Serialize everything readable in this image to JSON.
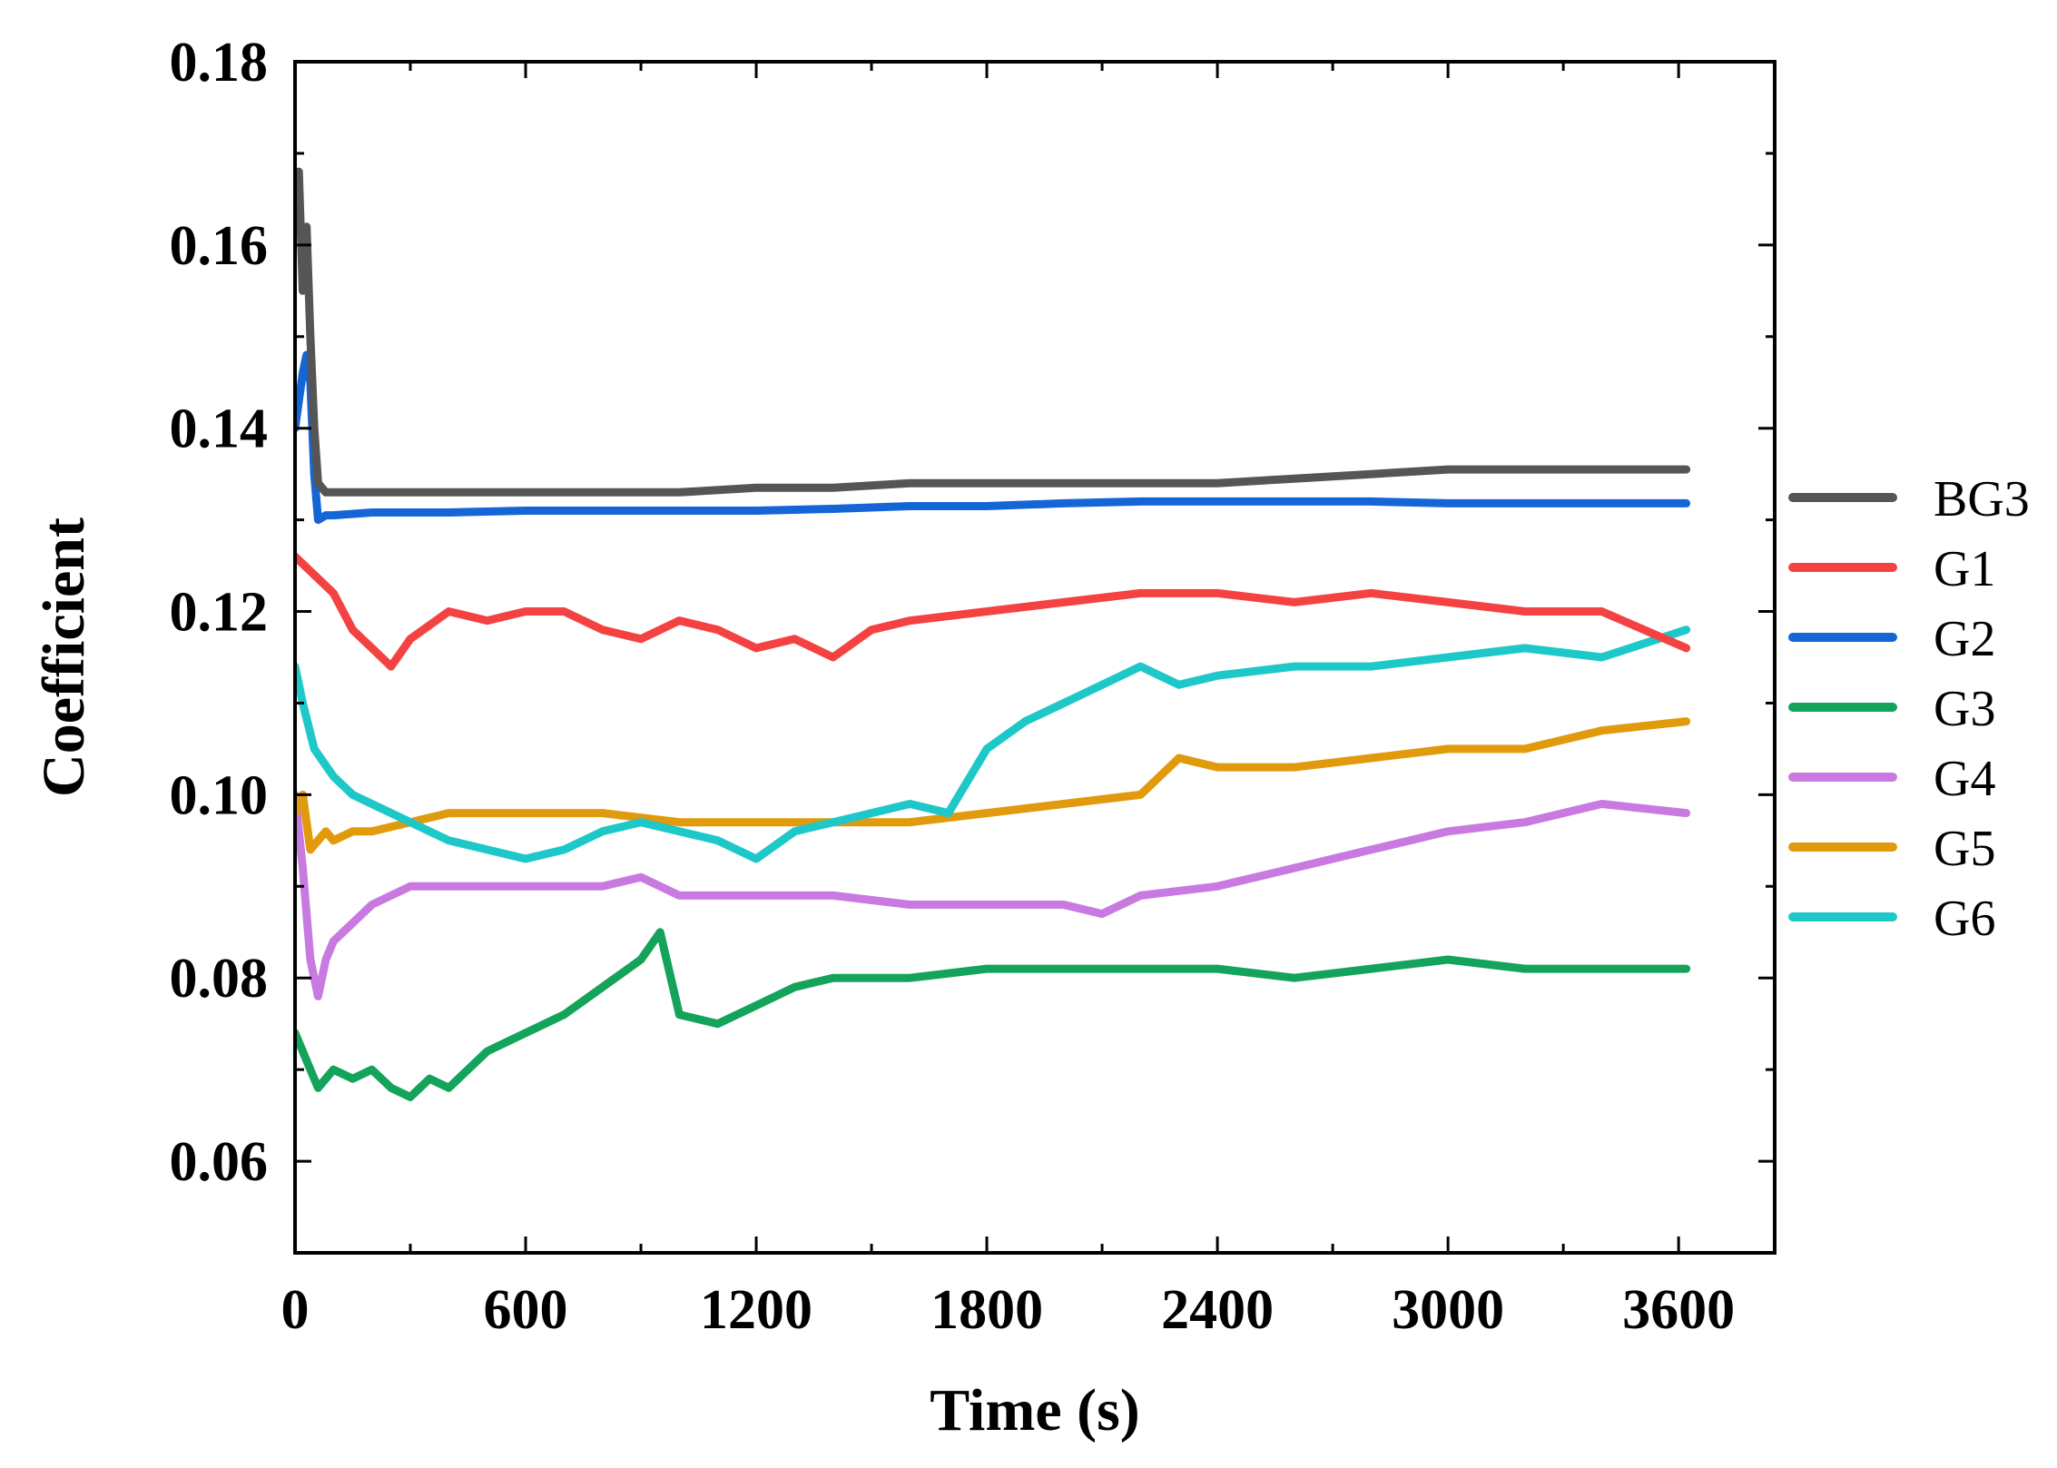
{
  "chart_data": {
    "type": "line",
    "title": "",
    "xlabel": "Time (s)",
    "ylabel": "Coefficient",
    "xlim": [
      0,
      3850
    ],
    "ylim": [
      0.05,
      0.18
    ],
    "xticks": [
      0,
      600,
      1200,
      1800,
      2400,
      3000,
      3600
    ],
    "xtick_labels": [
      "0",
      "600",
      "1200",
      "1800",
      "2400",
      "3000",
      "3600"
    ],
    "yticks": [
      0.06,
      0.08,
      0.1,
      0.12,
      0.14,
      0.16,
      0.18
    ],
    "ytick_labels": [
      "0.06",
      "0.08",
      "0.10",
      "0.12",
      "0.14",
      "0.16",
      "0.18"
    ],
    "grid": false,
    "legend_position": "right",
    "series": [
      {
        "name": "BG3",
        "color": "#555555",
        "x": [
          0,
          10,
          20,
          30,
          40,
          50,
          60,
          80,
          100,
          200,
          400,
          600,
          800,
          1000,
          1200,
          1400,
          1600,
          1800,
          2000,
          2200,
          2400,
          2600,
          2800,
          3000,
          3200,
          3400,
          3620
        ],
        "y": [
          0.165,
          0.168,
          0.155,
          0.162,
          0.15,
          0.14,
          0.134,
          0.133,
          0.133,
          0.133,
          0.133,
          0.133,
          0.133,
          0.133,
          0.1335,
          0.1335,
          0.134,
          0.134,
          0.134,
          0.134,
          0.134,
          0.1345,
          0.135,
          0.1355,
          0.1355,
          0.1355,
          0.1355
        ]
      },
      {
        "name": "G1",
        "color": "#f44242",
        "x": [
          0,
          50,
          100,
          150,
          200,
          250,
          300,
          400,
          500,
          600,
          700,
          800,
          900,
          1000,
          1100,
          1200,
          1300,
          1400,
          1500,
          1600,
          1800,
          2000,
          2200,
          2400,
          2600,
          2800,
          3000,
          3200,
          3400,
          3620
        ],
        "y": [
          0.126,
          0.124,
          0.122,
          0.118,
          0.116,
          0.114,
          0.117,
          0.12,
          0.119,
          0.12,
          0.12,
          0.118,
          0.117,
          0.119,
          0.118,
          0.116,
          0.117,
          0.115,
          0.118,
          0.119,
          0.12,
          0.121,
          0.122,
          0.122,
          0.121,
          0.122,
          0.121,
          0.12,
          0.12,
          0.116
        ]
      },
      {
        "name": "G2",
        "color": "#1565d6",
        "x": [
          0,
          10,
          20,
          30,
          40,
          50,
          60,
          80,
          100,
          200,
          400,
          600,
          800,
          1000,
          1200,
          1400,
          1600,
          1800,
          2000,
          2200,
          2400,
          2600,
          2800,
          3000,
          3200,
          3400,
          3620
        ],
        "y": [
          0.14,
          0.143,
          0.146,
          0.148,
          0.145,
          0.135,
          0.13,
          0.1305,
          0.1305,
          0.1308,
          0.1308,
          0.131,
          0.131,
          0.131,
          0.131,
          0.1312,
          0.1315,
          0.1315,
          0.1318,
          0.132,
          0.132,
          0.132,
          0.132,
          0.1318,
          0.1318,
          0.1318,
          0.1318
        ]
      },
      {
        "name": "G3",
        "color": "#14a35a",
        "x": [
          0,
          20,
          40,
          60,
          100,
          150,
          200,
          250,
          300,
          350,
          400,
          500,
          600,
          700,
          800,
          900,
          950,
          1000,
          1100,
          1200,
          1300,
          1400,
          1600,
          1800,
          2000,
          2200,
          2400,
          2600,
          2800,
          3000,
          3200,
          3400,
          3620
        ],
        "y": [
          0.074,
          0.072,
          0.07,
          0.068,
          0.07,
          0.069,
          0.07,
          0.068,
          0.067,
          0.069,
          0.068,
          0.072,
          0.074,
          0.076,
          0.079,
          0.082,
          0.085,
          0.076,
          0.075,
          0.077,
          0.079,
          0.08,
          0.08,
          0.081,
          0.081,
          0.081,
          0.081,
          0.08,
          0.081,
          0.082,
          0.081,
          0.081,
          0.081
        ]
      },
      {
        "name": "G4",
        "color": "#c97ae0",
        "x": [
          0,
          20,
          40,
          60,
          80,
          100,
          150,
          200,
          300,
          400,
          600,
          800,
          900,
          1000,
          1200,
          1400,
          1600,
          1800,
          2000,
          2100,
          2200,
          2400,
          2600,
          2800,
          3000,
          3200,
          3400,
          3620
        ],
        "y": [
          0.1,
          0.092,
          0.082,
          0.078,
          0.082,
          0.084,
          0.086,
          0.088,
          0.09,
          0.09,
          0.09,
          0.09,
          0.091,
          0.089,
          0.089,
          0.089,
          0.088,
          0.088,
          0.088,
          0.087,
          0.089,
          0.09,
          0.092,
          0.094,
          0.096,
          0.097,
          0.099,
          0.098
        ]
      },
      {
        "name": "G5",
        "color": "#e09a0c",
        "x": [
          0,
          20,
          40,
          60,
          80,
          100,
          150,
          200,
          300,
          400,
          600,
          800,
          1000,
          1200,
          1400,
          1600,
          1800,
          2000,
          2200,
          2300,
          2400,
          2600,
          2800,
          3000,
          3200,
          3400,
          3620
        ],
        "y": [
          0.098,
          0.1,
          0.094,
          0.095,
          0.096,
          0.095,
          0.096,
          0.096,
          0.097,
          0.098,
          0.098,
          0.098,
          0.097,
          0.097,
          0.097,
          0.097,
          0.098,
          0.099,
          0.1,
          0.104,
          0.103,
          0.103,
          0.104,
          0.105,
          0.105,
          0.107,
          0.108
        ]
      },
      {
        "name": "G6",
        "color": "#1ec8c8",
        "x": [
          0,
          20,
          50,
          100,
          150,
          200,
          300,
          400,
          500,
          600,
          700,
          800,
          900,
          1000,
          1100,
          1200,
          1300,
          1400,
          1500,
          1600,
          1700,
          1800,
          1900,
          2000,
          2100,
          2200,
          2300,
          2400,
          2600,
          2800,
          3000,
          3200,
          3400,
          3620
        ],
        "y": [
          0.114,
          0.11,
          0.105,
          0.102,
          0.1,
          0.099,
          0.097,
          0.095,
          0.094,
          0.093,
          0.094,
          0.096,
          0.097,
          0.096,
          0.095,
          0.093,
          0.096,
          0.097,
          0.098,
          0.099,
          0.098,
          0.105,
          0.108,
          0.11,
          0.112,
          0.114,
          0.112,
          0.113,
          0.114,
          0.114,
          0.115,
          0.116,
          0.115,
          0.118
        ]
      }
    ]
  }
}
